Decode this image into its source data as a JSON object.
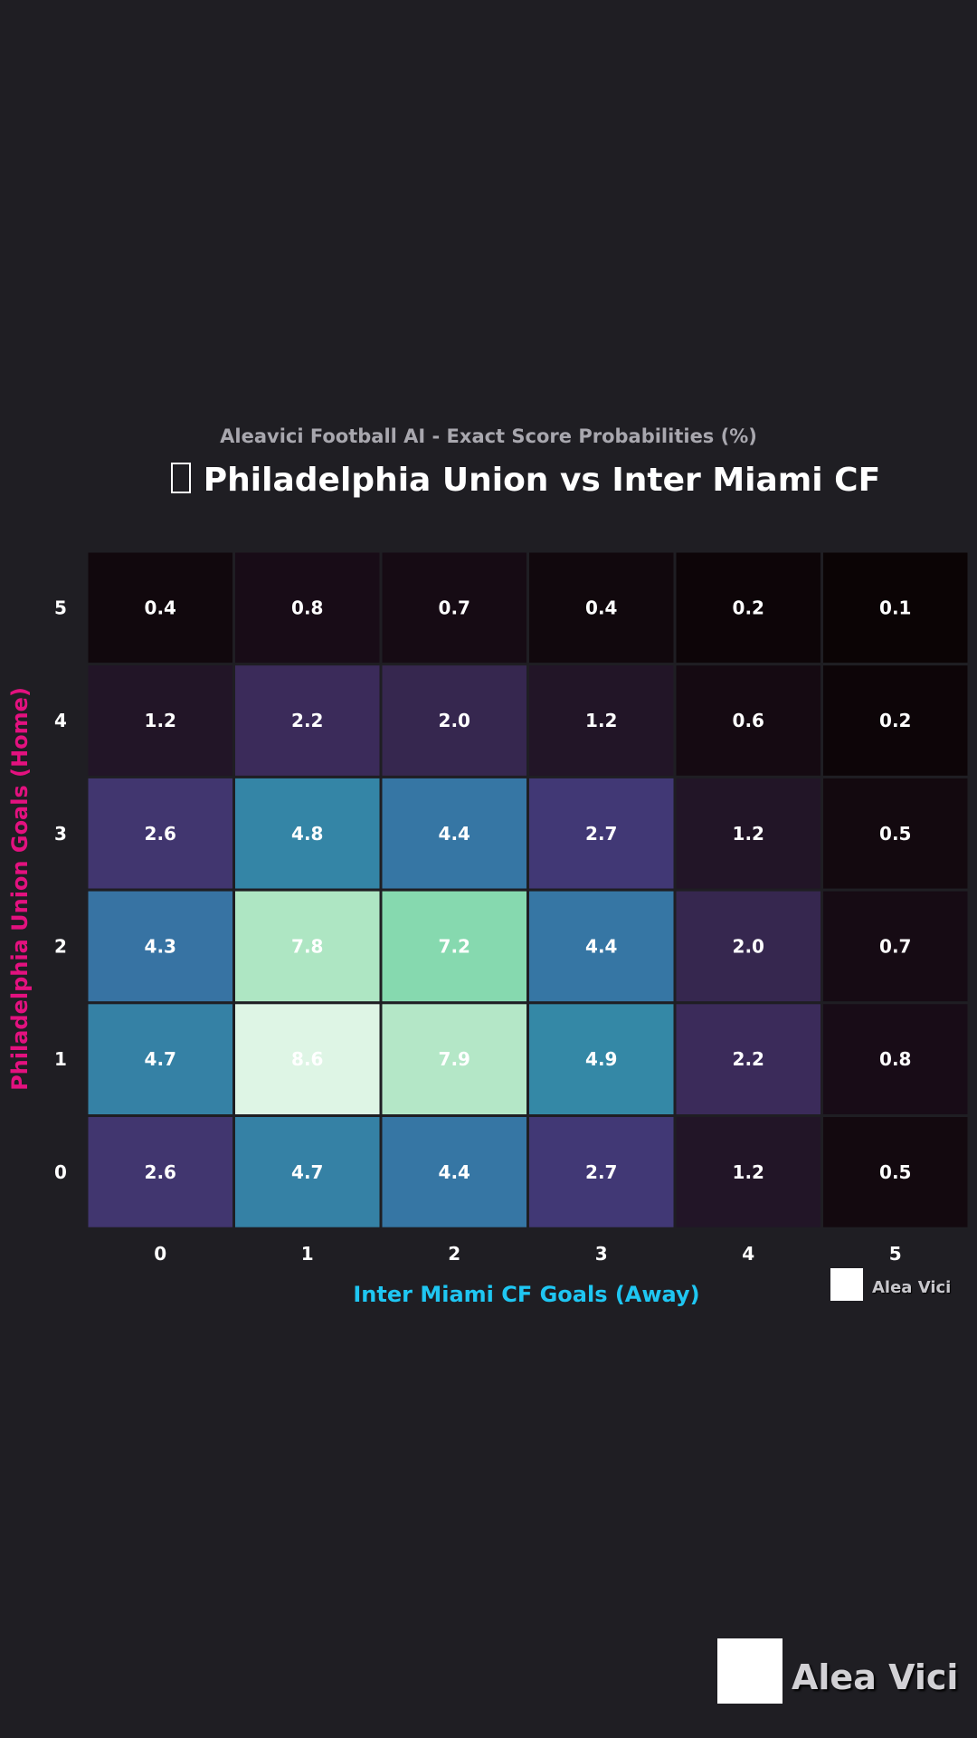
{
  "chart_data": {
    "type": "heatmap",
    "subtitle": "Aleavici Football AI - Exact Score Probabilities (%)",
    "title": "Philadelphia Union vs Inter Miami CF",
    "xlabel": "Inter Miami CF Goals (Away)",
    "ylabel": "Philadelphia Union Goals (Home)",
    "x_categories": [
      "0",
      "1",
      "2",
      "3",
      "4",
      "5"
    ],
    "y_categories": [
      "5",
      "4",
      "3",
      "2",
      "1",
      "0"
    ],
    "values": [
      [
        0.4,
        0.8,
        0.7,
        0.4,
        0.2,
        0.1
      ],
      [
        1.2,
        2.2,
        2.0,
        1.2,
        0.6,
        0.2
      ],
      [
        2.6,
        4.8,
        4.4,
        2.7,
        1.2,
        0.5
      ],
      [
        4.3,
        7.8,
        7.2,
        4.4,
        2.0,
        0.7
      ],
      [
        4.7,
        8.6,
        7.9,
        4.9,
        2.2,
        0.8
      ],
      [
        2.6,
        4.7,
        4.4,
        2.7,
        1.2,
        0.5
      ]
    ],
    "colormap": "mako",
    "colorbar": false,
    "grid": false
  },
  "branding": {
    "watermark_small": "Alea Vici",
    "watermark_large": "Alea Vici"
  },
  "colors": {
    "background": "#1f1e23",
    "ylabel": "#e3117f",
    "xlabel": "#1fc6f2",
    "subtitle": "#a8a7ae",
    "title": "#ffffff"
  }
}
